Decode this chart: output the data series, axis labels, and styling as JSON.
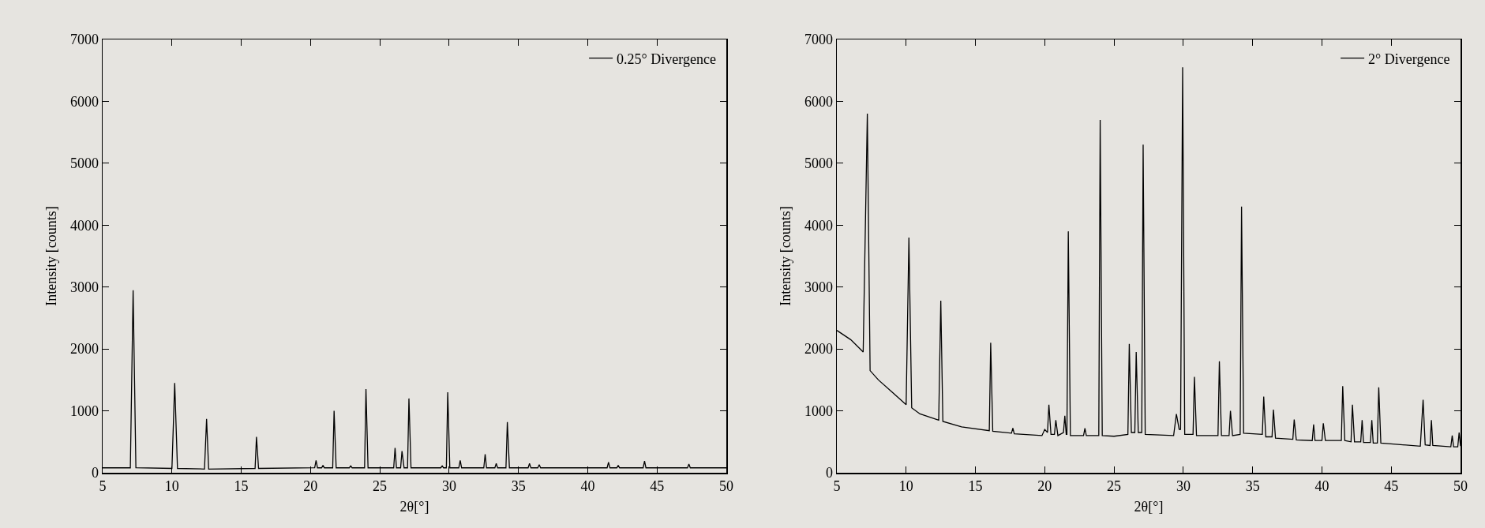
{
  "chart_data": [
    {
      "type": "line",
      "xlabel": "2θ[°]",
      "ylabel": "Intensity [counts]",
      "xlim": [
        5,
        50
      ],
      "xticks": [
        5,
        10,
        15,
        20,
        25,
        30,
        35,
        40,
        45,
        50
      ],
      "ylim": [
        0,
        7000
      ],
      "yticks": [
        0,
        1000,
        2000,
        3000,
        4000,
        5000,
        6000,
        7000
      ],
      "grid": false,
      "legend": "top right",
      "marker": "none",
      "line_style": "solid",
      "x": [
        5,
        7.0,
        7.2,
        7.4,
        10.0,
        10.2,
        10.4,
        12.35,
        12.5,
        12.65,
        16.0,
        16.1,
        16.25,
        20.3,
        20.4,
        20.5,
        20.8,
        20.9,
        21.0,
        21.6,
        21.7,
        21.85,
        22.8,
        22.9,
        23.0,
        23.9,
        24.0,
        24.15,
        26.0,
        26.1,
        26.2,
        26.5,
        26.6,
        26.75,
        27.0,
        27.1,
        27.25,
        29.4,
        29.5,
        29.6,
        29.8,
        29.9,
        30.05,
        30.7,
        30.8,
        30.9,
        32.5,
        32.6,
        32.7,
        33.3,
        33.4,
        33.5,
        34.1,
        34.2,
        34.35,
        35.7,
        35.8,
        35.9,
        36.4,
        36.5,
        36.6,
        41.4,
        41.5,
        41.6,
        42.1,
        42.2,
        42.3,
        44.0,
        44.1,
        44.2,
        47.2,
        47.3,
        47.4,
        50
      ],
      "series": [
        {
          "name": "0.25° Divergence",
          "color": "#000000",
          "values": [
            80,
            80,
            2950,
            80,
            70,
            1450,
            70,
            60,
            870,
            60,
            70,
            580,
            70,
            80,
            200,
            80,
            80,
            120,
            80,
            80,
            1000,
            80,
            80,
            110,
            80,
            80,
            1350,
            80,
            80,
            400,
            80,
            80,
            350,
            80,
            80,
            1200,
            80,
            80,
            110,
            80,
            80,
            1300,
            80,
            80,
            200,
            80,
            80,
            300,
            80,
            80,
            150,
            80,
            80,
            820,
            80,
            80,
            150,
            80,
            80,
            130,
            80,
            80,
            170,
            80,
            80,
            120,
            80,
            80,
            190,
            80,
            80,
            140,
            80,
            80
          ]
        }
      ]
    },
    {
      "type": "line",
      "xlabel": "2θ[°]",
      "ylabel": "Intensity [counts]",
      "xlim": [
        5,
        50
      ],
      "xticks": [
        5,
        10,
        15,
        20,
        25,
        30,
        35,
        40,
        45,
        50
      ],
      "ylim": [
        0,
        7000
      ],
      "yticks": [
        0,
        1000,
        2000,
        3000,
        4000,
        5000,
        6000,
        7000
      ],
      "grid": false,
      "legend": "top right",
      "marker": "none",
      "line_style": "solid",
      "x": [
        5,
        6,
        6.9,
        7.2,
        7.4,
        8,
        9,
        10.0,
        10.2,
        10.4,
        11,
        12.35,
        12.5,
        12.65,
        14,
        16.0,
        16.1,
        16.25,
        17.6,
        17.7,
        17.8,
        19.8,
        20.0,
        20.2,
        20.3,
        20.45,
        20.7,
        20.8,
        20.95,
        21.35,
        21.45,
        21.55,
        21.6,
        21.7,
        21.85,
        22.8,
        22.9,
        23.0,
        23.9,
        24.0,
        24.15,
        25,
        26.0,
        26.1,
        26.25,
        26.5,
        26.6,
        26.75,
        27.0,
        27.1,
        27.25,
        29.3,
        29.5,
        29.7,
        29.8,
        29.95,
        30.1,
        30.7,
        30.8,
        30.95,
        32.5,
        32.6,
        32.75,
        33.3,
        33.4,
        33.55,
        34.1,
        34.2,
        34.35,
        35.7,
        35.8,
        35.95,
        36.4,
        36.5,
        36.65,
        37.9,
        38.0,
        38.15,
        39.3,
        39.4,
        39.5,
        40.0,
        40.1,
        40.25,
        41.4,
        41.5,
        41.65,
        42.1,
        42.2,
        42.35,
        42.8,
        42.9,
        43.0,
        43.5,
        43.6,
        43.7,
        44.0,
        44.1,
        44.25,
        44.8,
        47.1,
        47.3,
        47.45,
        47.8,
        47.9,
        48.0,
        49.3,
        49.4,
        49.5,
        49.8,
        49.9,
        50
      ],
      "series": [
        {
          "name": "2° Divergence",
          "color": "#000000",
          "values": [
            2300,
            2150,
            1950,
            5800,
            1650,
            1500,
            1300,
            1100,
            3800,
            1050,
            950,
            850,
            2780,
            830,
            740,
            680,
            2100,
            670,
            640,
            720,
            630,
            600,
            700,
            650,
            1100,
            620,
            620,
            850,
            600,
            650,
            920,
            620,
            620,
            3900,
            600,
            600,
            720,
            600,
            600,
            5700,
            600,
            590,
            620,
            2080,
            650,
            650,
            1950,
            650,
            650,
            5300,
            620,
            600,
            950,
            700,
            700,
            6550,
            620,
            620,
            1550,
            600,
            600,
            1800,
            600,
            600,
            1000,
            600,
            620,
            4300,
            640,
            620,
            1230,
            580,
            580,
            1020,
            560,
            540,
            860,
            530,
            520,
            780,
            520,
            520,
            800,
            520,
            520,
            1400,
            520,
            500,
            1100,
            500,
            500,
            850,
            490,
            490,
            850,
            480,
            480,
            1380,
            480,
            470,
            430,
            1180,
            450,
            440,
            850,
            440,
            420,
            600,
            420,
            420,
            650,
            430
          ]
        }
      ]
    }
  ]
}
